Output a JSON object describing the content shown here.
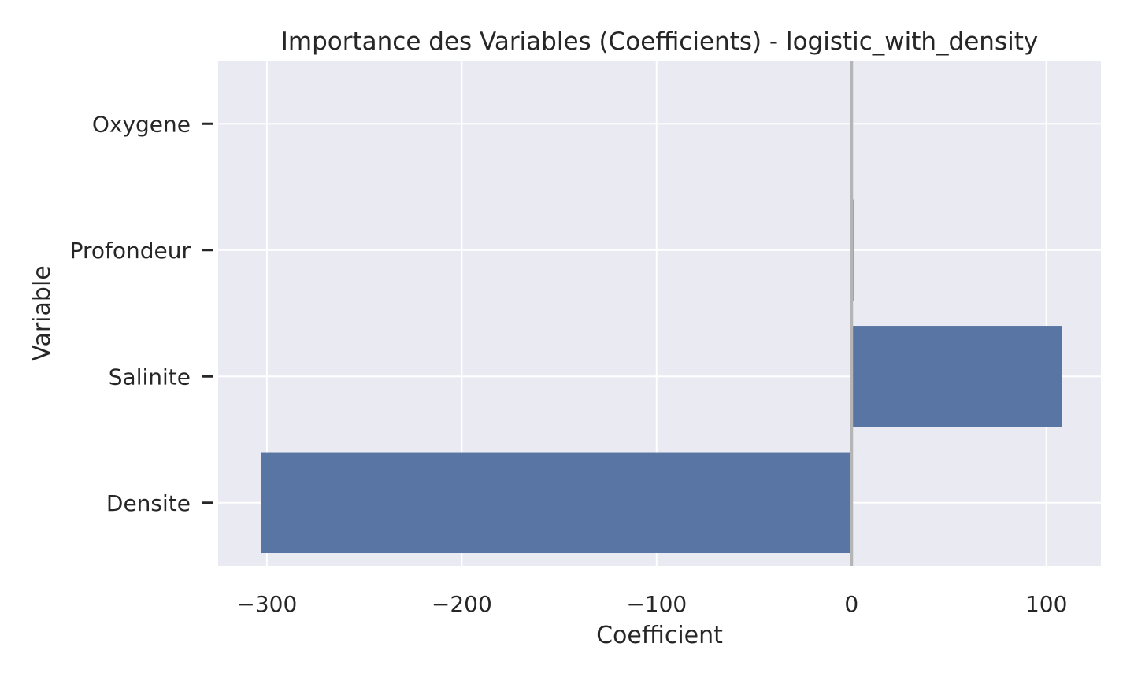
{
  "chart_data": {
    "type": "bar",
    "orientation": "horizontal",
    "title": "Importance des Variables (Coefficients) - logistic_with_density",
    "xlabel": "Coefficient",
    "ylabel": "Variable",
    "categories": [
      "Oxygene",
      "Profondeur",
      "Salinite",
      "Densite"
    ],
    "values": [
      0.0,
      1.0,
      108.0,
      -303.0
    ],
    "xlim": [
      -325,
      128
    ],
    "xticks": [
      -300,
      -200,
      -100,
      0,
      100
    ],
    "xtick_labels": [
      "−300",
      "−200",
      "−100",
      "0",
      "100"
    ],
    "grid": true,
    "reference_line_x": 0,
    "colors": {
      "bar": "#5975a4",
      "plot_background": "#eaeaf2",
      "grid": "#ffffff",
      "reference_line": "#b5b5b5",
      "text": "#262626"
    }
  }
}
